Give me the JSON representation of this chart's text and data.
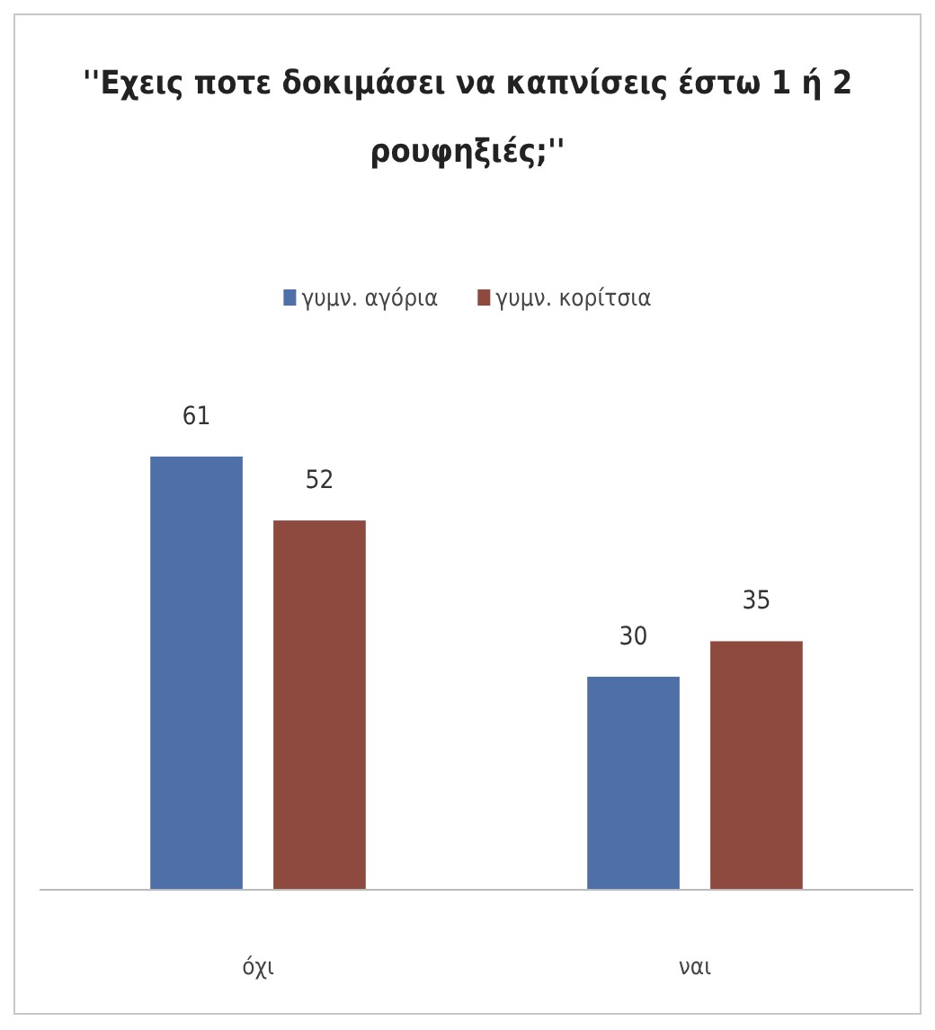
{
  "chart_data": {
    "type": "bar",
    "title": "''Εχεις ποτε δοκιμάσει να καπνίσεις έστω 1 ή 2 ρουφηξιές;''",
    "categories": [
      "όχι",
      "ναι"
    ],
    "series": [
      {
        "name": "γυμν. αγόρια",
        "color": "#4f6fa8",
        "values": [
          61,
          30
        ]
      },
      {
        "name": "γυμν. κορίτσια",
        "color": "#8e4a3e",
        "values": [
          52,
          35
        ]
      }
    ],
    "data_labels": true,
    "legend": "top"
  }
}
